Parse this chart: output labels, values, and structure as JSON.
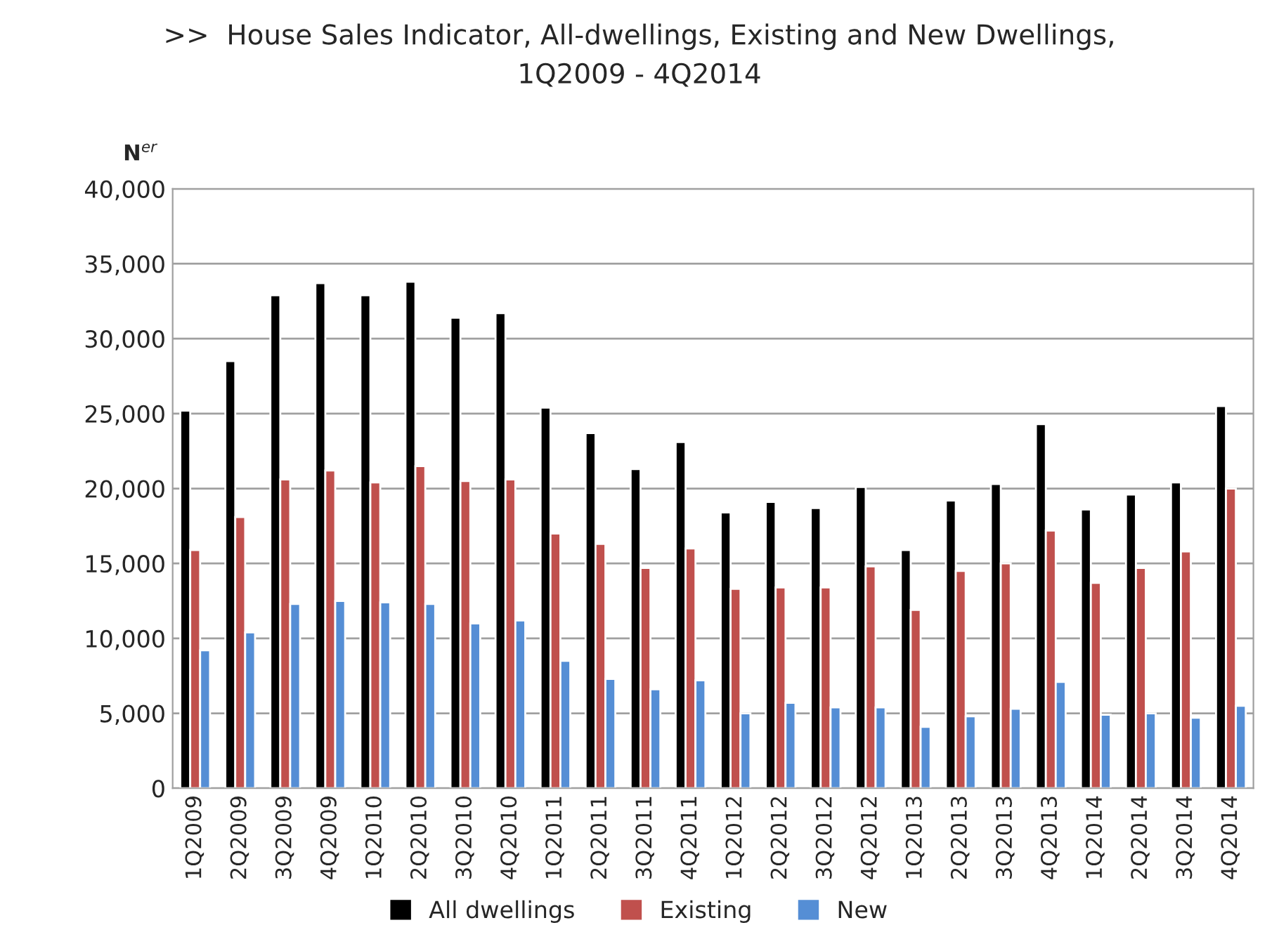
{
  "chart_data": {
    "type": "bar",
    "title": ">>  House Sales Indicator, All-dwellings, Existing and New Dwellings,\n1Q2009 - 4Q2014",
    "ylabel": "N$^{er}$",
    "categories": [
      "1Q2009",
      "2Q2009",
      "3Q2009",
      "4Q2009",
      "1Q2010",
      "2Q2010",
      "3Q2010",
      "4Q2010",
      "1Q2011",
      "2Q2011",
      "3Q2011",
      "4Q2011",
      "1Q2012",
      "2Q2012",
      "3Q2012",
      "4Q2012",
      "1Q2013",
      "2Q2013",
      "3Q2013",
      "4Q2013",
      "1Q2014",
      "2Q2014",
      "3Q2014",
      "4Q2014"
    ],
    "series": [
      {
        "name": "All dwellings",
        "color": "#000000",
        "values": [
          25200,
          28500,
          32900,
          33700,
          32900,
          33800,
          31400,
          31700,
          25400,
          23700,
          21300,
          23100,
          18400,
          19100,
          18700,
          20100,
          15900,
          19200,
          20300,
          24300,
          18600,
          19600,
          20400,
          25500
        ]
      },
      {
        "name": "Existing",
        "color": "#c0504d",
        "values": [
          15900,
          18100,
          20600,
          21200,
          20400,
          21500,
          20500,
          20600,
          17000,
          16300,
          14700,
          16000,
          13300,
          13400,
          13400,
          14800,
          11900,
          14500,
          15000,
          17200,
          13700,
          14700,
          15800,
          20000
        ]
      },
      {
        "name": "New",
        "color": "#558ed5",
        "values": [
          9200,
          10400,
          12300,
          12500,
          12400,
          12300,
          11000,
          11200,
          8500,
          7300,
          6600,
          7200,
          5000,
          5700,
          5400,
          5400,
          4100,
          4800,
          5300,
          7100,
          4900,
          5000,
          4700,
          5500
        ]
      }
    ],
    "ylim": [
      0,
      40000
    ],
    "yticks": [
      {
        "value": 0,
        "label": "0"
      },
      {
        "value": 5000,
        "label": "5,000"
      },
      {
        "value": 10000,
        "label": "10,000"
      },
      {
        "value": 15000,
        "label": "15,000"
      },
      {
        "value": 20000,
        "label": "20,000"
      },
      {
        "value": 25000,
        "label": "25,000"
      },
      {
        "value": 30000,
        "label": "30,000"
      },
      {
        "value": 35000,
        "label": "35,000"
      },
      {
        "value": 40000,
        "label": "40,000"
      }
    ],
    "grid": "y",
    "legend": "bottom"
  }
}
